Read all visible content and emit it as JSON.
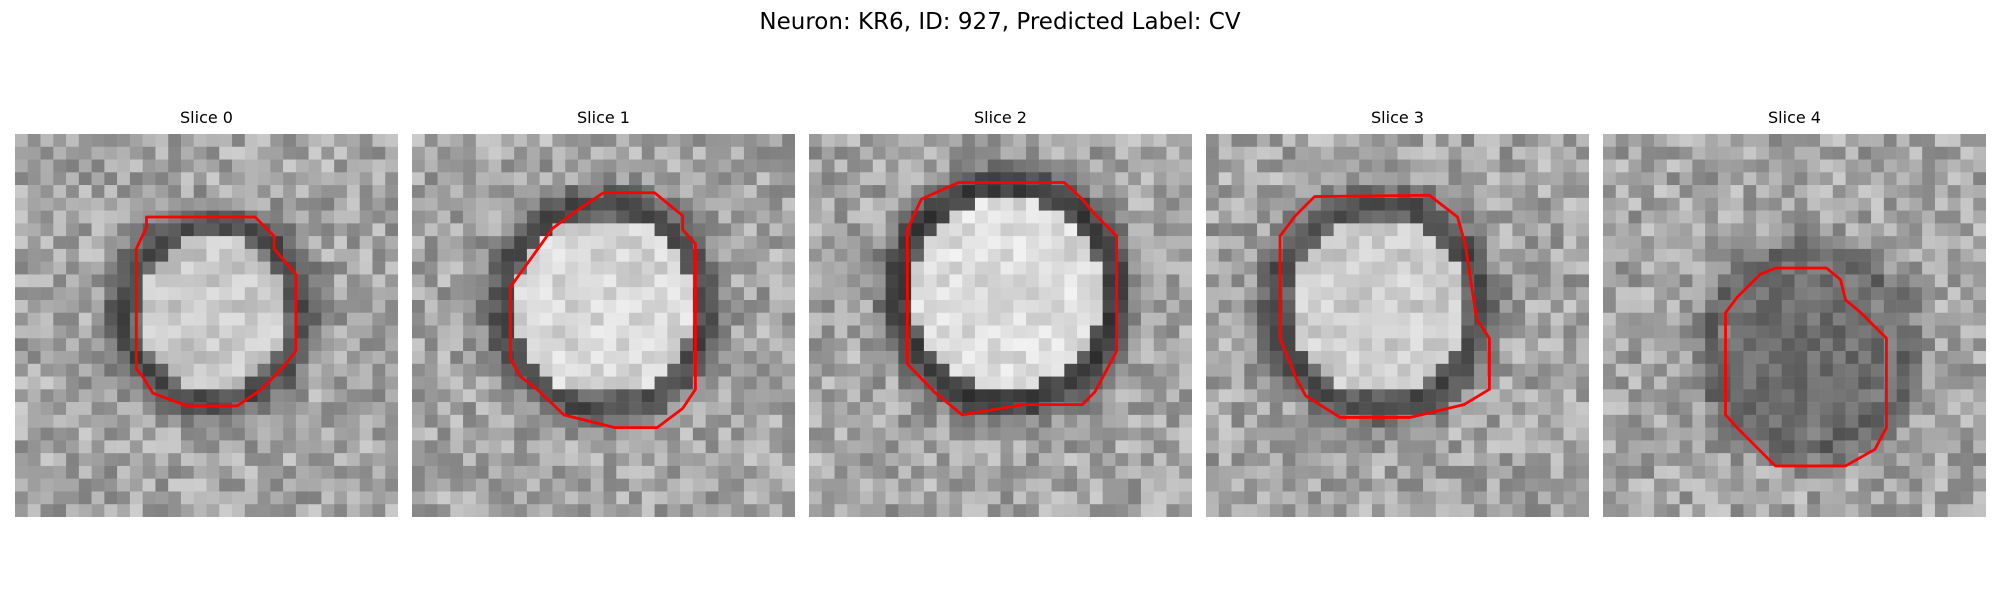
{
  "figure": {
    "title": "Neuron: KR6, ID: 927, Predicted Label: CV",
    "contour_color": "#ff0000",
    "colormap": "grayscale",
    "panels": [
      {
        "title": "Slice 0"
      },
      {
        "title": "Slice 1"
      },
      {
        "title": "Slice 2"
      },
      {
        "title": "Slice 3"
      },
      {
        "title": "Slice 4"
      }
    ]
  }
}
